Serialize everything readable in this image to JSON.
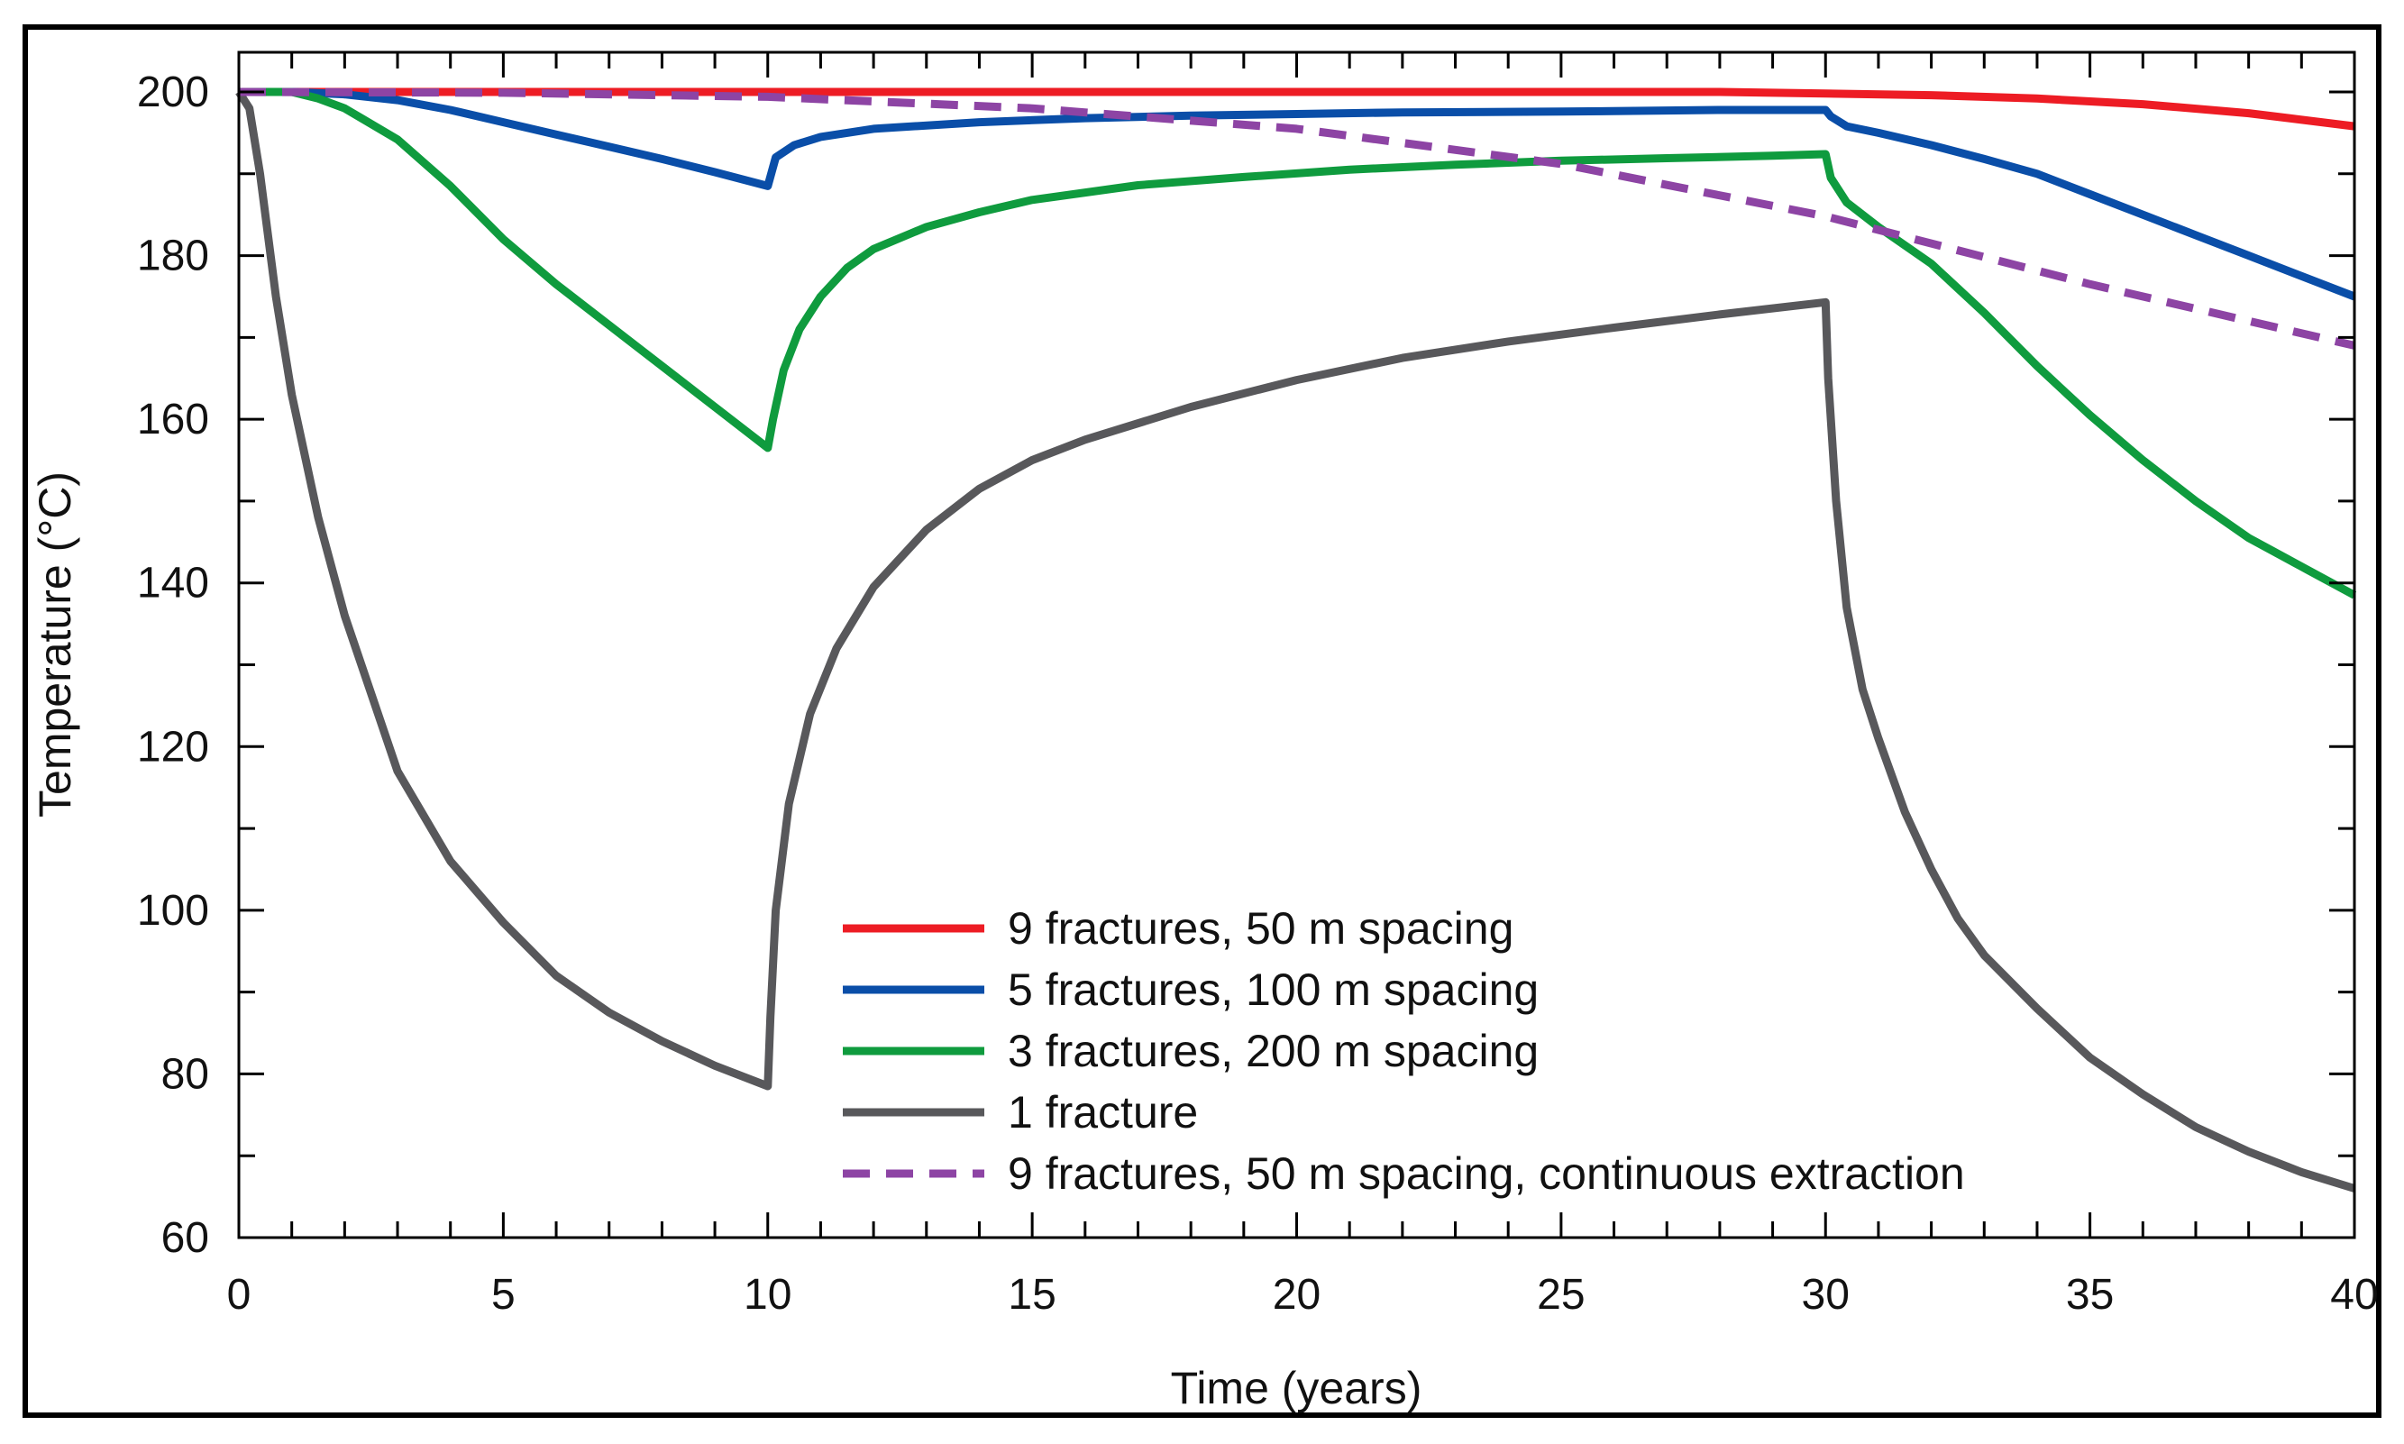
{
  "chart_data": {
    "type": "line",
    "title": "",
    "xlabel": "Time (years)",
    "ylabel": "Temperature (°C)",
    "xlim": [
      0,
      40
    ],
    "ylim": [
      60,
      205
    ],
    "xticks": [
      0,
      5,
      10,
      15,
      20,
      25,
      30,
      35,
      40
    ],
    "xtick_labels": [
      "0",
      "5",
      "10",
      "15",
      "20",
      "25",
      "30",
      "35",
      "40"
    ],
    "yticks": [
      60,
      80,
      100,
      120,
      140,
      160,
      180,
      200
    ],
    "ytick_labels": [
      "60",
      "80",
      "100",
      "120",
      "140",
      "160",
      "180",
      "200"
    ],
    "x_minor_step": 1,
    "y_minor_step": 10,
    "grid": false,
    "legend_position": "bottom-center",
    "series": [
      {
        "name": "9 fractures, 50 m spacing",
        "color": "#ed1c24",
        "dash": "solid",
        "points": [
          [
            0,
            200
          ],
          [
            5,
            200
          ],
          [
            10,
            200
          ],
          [
            15,
            200
          ],
          [
            20,
            200
          ],
          [
            25,
            200
          ],
          [
            28,
            200
          ],
          [
            30,
            199.8
          ],
          [
            32,
            199.6
          ],
          [
            34,
            199.2
          ],
          [
            36,
            198.5
          ],
          [
            38,
            197.4
          ],
          [
            40,
            195.8
          ]
        ]
      },
      {
        "name": "5 fractures, 100 m spacing",
        "color": "#0a4ea8",
        "dash": "solid",
        "points": [
          [
            0,
            200
          ],
          [
            1,
            200
          ],
          [
            2,
            199.7
          ],
          [
            3,
            199
          ],
          [
            4,
            197.8
          ],
          [
            5,
            196.3
          ],
          [
            6,
            194.8
          ],
          [
            7,
            193.3
          ],
          [
            8,
            191.8
          ],
          [
            9,
            190.2
          ],
          [
            10,
            188.5
          ],
          [
            10.15,
            192
          ],
          [
            10.5,
            193.5
          ],
          [
            11,
            194.5
          ],
          [
            12,
            195.5
          ],
          [
            14,
            196.3
          ],
          [
            16,
            196.8
          ],
          [
            18,
            197.1
          ],
          [
            20,
            197.3
          ],
          [
            22,
            197.5
          ],
          [
            25,
            197.6
          ],
          [
            28,
            197.8
          ],
          [
            30,
            197.8
          ],
          [
            30.1,
            197
          ],
          [
            30.4,
            195.8
          ],
          [
            31,
            195
          ],
          [
            32,
            193.5
          ],
          [
            33,
            191.8
          ],
          [
            34,
            190
          ],
          [
            35,
            187.5
          ],
          [
            36,
            185
          ],
          [
            37,
            182.5
          ],
          [
            38,
            180
          ],
          [
            39,
            177.5
          ],
          [
            40,
            175
          ]
        ]
      },
      {
        "name": "3 fractures, 200 m spacing",
        "color": "#0f9b3e",
        "dash": "solid",
        "points": [
          [
            0,
            200
          ],
          [
            0.5,
            200
          ],
          [
            1,
            200
          ],
          [
            1.5,
            199.2
          ],
          [
            2,
            198
          ],
          [
            3,
            194.2
          ],
          [
            4,
            188.5
          ],
          [
            5,
            182
          ],
          [
            6,
            176.5
          ],
          [
            7,
            171.5
          ],
          [
            8,
            166.5
          ],
          [
            9,
            161.5
          ],
          [
            10,
            156.5
          ],
          [
            10.1,
            160
          ],
          [
            10.3,
            166
          ],
          [
            10.6,
            171
          ],
          [
            11,
            175
          ],
          [
            11.5,
            178.5
          ],
          [
            12,
            180.8
          ],
          [
            13,
            183.5
          ],
          [
            14,
            185.3
          ],
          [
            15,
            186.8
          ],
          [
            17,
            188.6
          ],
          [
            19,
            189.6
          ],
          [
            21,
            190.5
          ],
          [
            23,
            191.1
          ],
          [
            25,
            191.6
          ],
          [
            27,
            191.9
          ],
          [
            29,
            192.2
          ],
          [
            30,
            192.4
          ],
          [
            30.1,
            189.5
          ],
          [
            30.4,
            186.5
          ],
          [
            31,
            183.5
          ],
          [
            32,
            179
          ],
          [
            33,
            173
          ],
          [
            34,
            166.5
          ],
          [
            35,
            160.5
          ],
          [
            36,
            155
          ],
          [
            37,
            150
          ],
          [
            38,
            145.5
          ],
          [
            39,
            142
          ],
          [
            40,
            138.5
          ]
        ]
      },
      {
        "name": "1 fracture",
        "color": "#58585b",
        "dash": "solid",
        "points": [
          [
            0,
            200
          ],
          [
            0.2,
            198
          ],
          [
            0.4,
            190
          ],
          [
            0.7,
            175
          ],
          [
            1,
            163
          ],
          [
            1.5,
            148
          ],
          [
            2,
            136
          ],
          [
            3,
            117
          ],
          [
            4,
            106
          ],
          [
            5,
            98.5
          ],
          [
            6,
            92
          ],
          [
            7,
            87.5
          ],
          [
            8,
            84
          ],
          [
            9,
            81
          ],
          [
            10,
            78.5
          ],
          [
            10.05,
            87
          ],
          [
            10.15,
            100
          ],
          [
            10.4,
            113
          ],
          [
            10.8,
            124
          ],
          [
            11.3,
            132
          ],
          [
            12,
            139.5
          ],
          [
            13,
            146.5
          ],
          [
            14,
            151.5
          ],
          [
            15,
            155
          ],
          [
            16,
            157.5
          ],
          [
            18,
            161.5
          ],
          [
            20,
            164.8
          ],
          [
            22,
            167.5
          ],
          [
            24,
            169.5
          ],
          [
            26,
            171.2
          ],
          [
            28,
            172.8
          ],
          [
            30,
            174.3
          ],
          [
            30.05,
            165
          ],
          [
            30.2,
            150
          ],
          [
            30.4,
            137
          ],
          [
            30.7,
            127
          ],
          [
            31,
            121
          ],
          [
            31.5,
            112
          ],
          [
            32,
            105
          ],
          [
            32.5,
            99
          ],
          [
            33,
            94.5
          ],
          [
            34,
            88
          ],
          [
            35,
            82
          ],
          [
            36,
            77.5
          ],
          [
            37,
            73.5
          ],
          [
            38,
            70.5
          ],
          [
            39,
            68
          ],
          [
            40,
            66
          ]
        ]
      },
      {
        "name": "9 fractures, 50 m spacing, continuous extraction",
        "color": "#8d44a4",
        "dash": "dashed",
        "points": [
          [
            0,
            200
          ],
          [
            5,
            199.9
          ],
          [
            10,
            199.4
          ],
          [
            15,
            198
          ],
          [
            20,
            195.5
          ],
          [
            25,
            191.2
          ],
          [
            30,
            184.8
          ],
          [
            35,
            176.5
          ],
          [
            40,
            169
          ]
        ]
      }
    ]
  }
}
